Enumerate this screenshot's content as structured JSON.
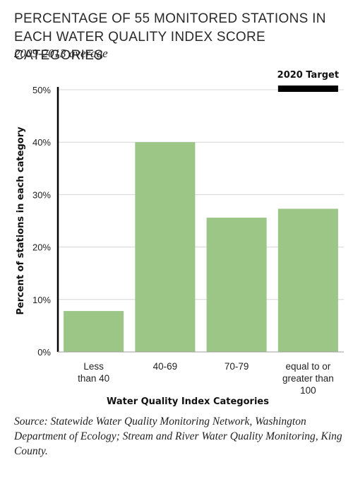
{
  "title": "PERCENTAGE OF 55 MONITORED STATIONS IN EACH WATER QUALITY INDEX SCORE CATEGORIES",
  "subtitle": "2009-2013 average",
  "source": "Source: Statewide Water Quality Monitoring Network, Washington Department of Ecology; Stream and River Water Quality Monitoring, King County.",
  "chart_data": {
    "type": "bar",
    "categories": [
      [
        "Less",
        "than 40"
      ],
      [
        "40-69"
      ],
      [
        "70-79"
      ],
      [
        "equal to or",
        "greater than",
        "100"
      ]
    ],
    "values": [
      7.8,
      40,
      25.6,
      27.3
    ],
    "unit": "%",
    "xlabel": "Water Quality Index Categories",
    "ylabel": "Percent of stations in each category",
    "ylim": [
      0,
      50
    ],
    "yticks": [
      0,
      10,
      20,
      30,
      40,
      50
    ],
    "ytick_labels": [
      "0%",
      "10%",
      "20%",
      "30%",
      "40%",
      "50%"
    ],
    "grid": true,
    "bar_color": "#9bc686",
    "annotation": {
      "label": "2020 Target",
      "category_index": 3,
      "value": 50,
      "color": "#000000"
    }
  }
}
